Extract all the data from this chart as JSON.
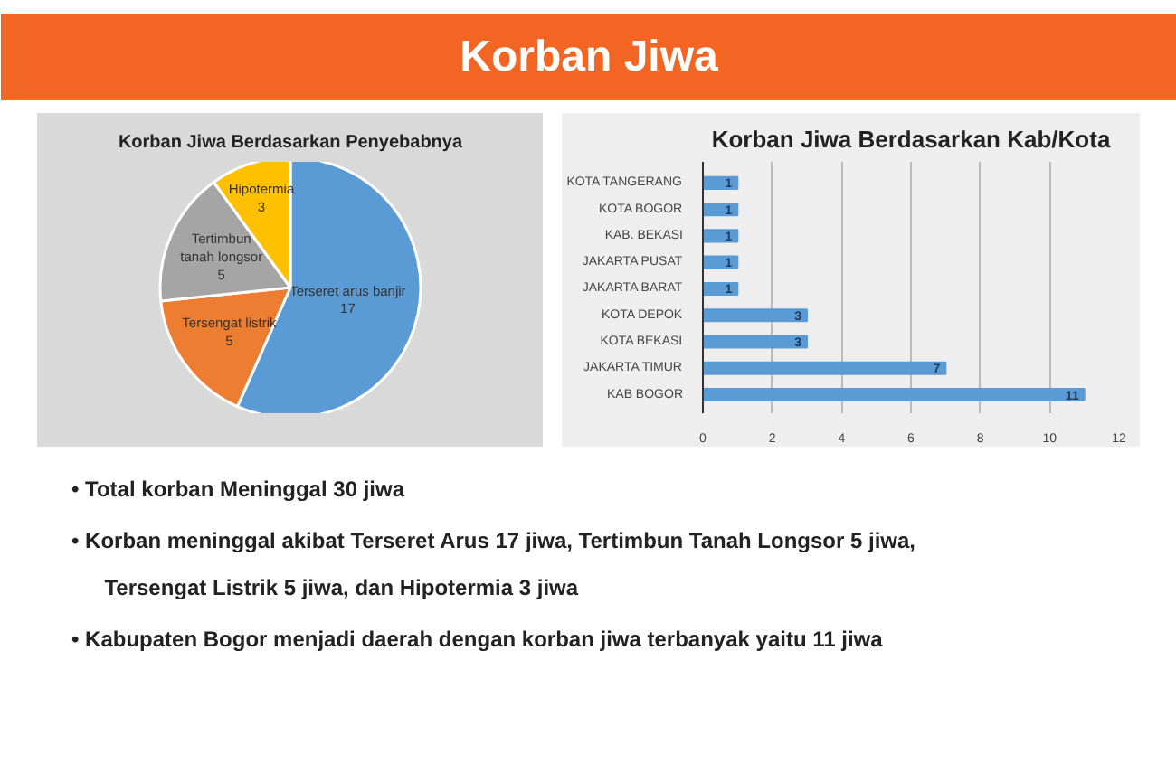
{
  "chart_data": [
    {
      "type": "other",
      "title": "Korban Jiwa",
      "annotations": [
        "•  Total korban Meninggal 30 jiwa",
        "•  Korban meninggal akibat Terseret Arus 17 jiwa, Tertimbun Tanah Longsor 5 jiwa, Tersengat Listrik 5 jiwa, dan Hipotermia 3 jiwa",
        "•  Kabupaten Bogor menjadi daerah dengan korban jiwa terbanyak yaitu 11 jiwa"
      ]
    },
    {
      "type": "pie",
      "title": "Korban Jiwa Berdasarkan Penyebabnya",
      "categories": [
        "Terseret arus banjir",
        "Tersengat listrik",
        "Tertimbun\ntanah longsor",
        "Hipotermia"
      ],
      "values": [
        17,
        5,
        5,
        3
      ],
      "colors": [
        "#5b9bd5",
        "#ed7d31",
        "#a5a5a5",
        "#ffc000"
      ],
      "data_labels": true
    },
    {
      "type": "bar",
      "orientation": "horizontal",
      "title": "Korban Jiwa Berdasarkan Kab/Kota",
      "categories": [
        "KOTA TANGERANG",
        "KOTA BOGOR",
        "KAB. BEKASI",
        "JAKARTA PUSAT",
        "JAKARTA BARAT",
        "KOTA DEPOK",
        "KOTA BEKASI",
        "JAKARTA TIMUR",
        "KAB BOGOR"
      ],
      "values": [
        1,
        1,
        1,
        1,
        1,
        3,
        3,
        7,
        11
      ],
      "color": "#5b9bd5",
      "xlim": [
        0,
        12
      ],
      "xticks": [
        0,
        2,
        4,
        6,
        8,
        10,
        12
      ],
      "grid": "x",
      "data_labels": true
    }
  ]
}
